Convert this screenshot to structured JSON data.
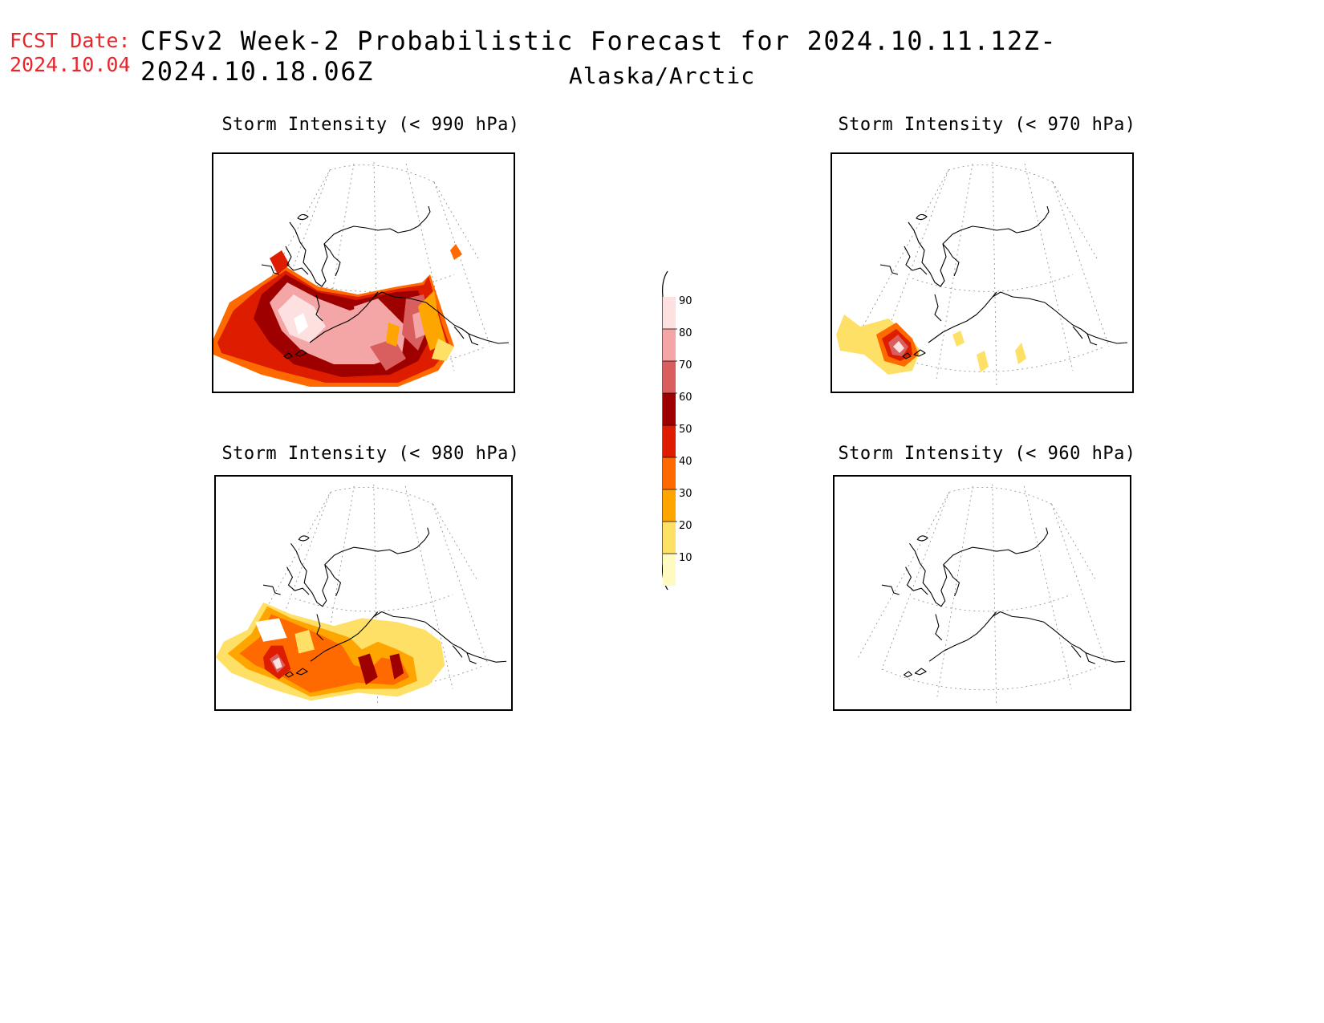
{
  "header": {
    "fcst_label": "FCST Date:",
    "fcst_date": "2024.10.04",
    "title": "CFSv2 Week-2 Probabilistic Forecast for 2024.10.11.12Z-2024.10.18.06Z",
    "subtitle": "Alaska/Arctic"
  },
  "panels": [
    {
      "id": "p990",
      "title": "Storm Intensity (< 990 hPa)",
      "threshold_hpa": 990,
      "coverage": "high"
    },
    {
      "id": "p970",
      "title": "Storm Intensity (< 970 hPa)",
      "threshold_hpa": 970,
      "coverage": "low"
    },
    {
      "id": "p980",
      "title": "Storm Intensity (< 980 hPa)",
      "threshold_hpa": 980,
      "coverage": "medium"
    },
    {
      "id": "p960",
      "title": "Storm Intensity (< 960 hPa)",
      "threshold_hpa": 960,
      "coverage": "none"
    }
  ],
  "legend": {
    "labels": [
      "90",
      "80",
      "70",
      "60",
      "50",
      "40",
      "30",
      "20",
      "10"
    ],
    "colors": [
      "#fde0e0",
      "#f4a6a6",
      "#d95f5f",
      "#9e0000",
      "#dd1c00",
      "#ff6a00",
      "#ffa500",
      "#ffe066",
      "#fffbc0"
    ]
  }
}
